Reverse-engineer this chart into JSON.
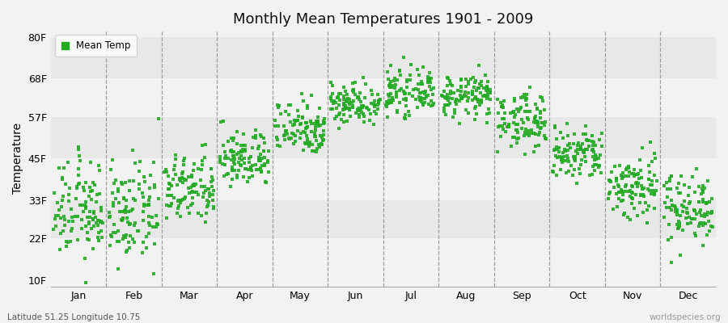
{
  "title": "Monthly Mean Temperatures 1901 - 2009",
  "ylabel": "Temperature",
  "yticks": [
    10,
    22,
    33,
    45,
    57,
    68,
    80
  ],
  "ytick_labels": [
    "10F",
    "22F",
    "33F",
    "45F",
    "57F",
    "68F",
    "80F"
  ],
  "ylim": [
    8,
    82
  ],
  "months": [
    "Jan",
    "Feb",
    "Mar",
    "Apr",
    "May",
    "Jun",
    "Jul",
    "Aug",
    "Sep",
    "Oct",
    "Nov",
    "Dec"
  ],
  "month_tick_positions": [
    0.5,
    1.5,
    2.5,
    3.5,
    4.5,
    5.5,
    6.5,
    7.5,
    8.5,
    9.5,
    10.5,
    11.5
  ],
  "month_means_F": [
    30,
    29,
    36,
    45,
    54,
    61,
    64,
    63,
    56,
    46,
    37,
    31
  ],
  "month_std_F": [
    7,
    7,
    5,
    4,
    4,
    3,
    3,
    3,
    4,
    4,
    5,
    5
  ],
  "dot_color": "#22aa22",
  "bg_color": "#f2f2f2",
  "band_colors": [
    "#f2f2f2",
    "#e8e8e8"
  ],
  "n_years": 109,
  "legend_label": "Mean Temp",
  "subtitle_left": "Latitude 51.25 Longitude 10.75",
  "subtitle_right": "worldspecies.org",
  "dot_size": 8,
  "dot_alpha": 0.9
}
